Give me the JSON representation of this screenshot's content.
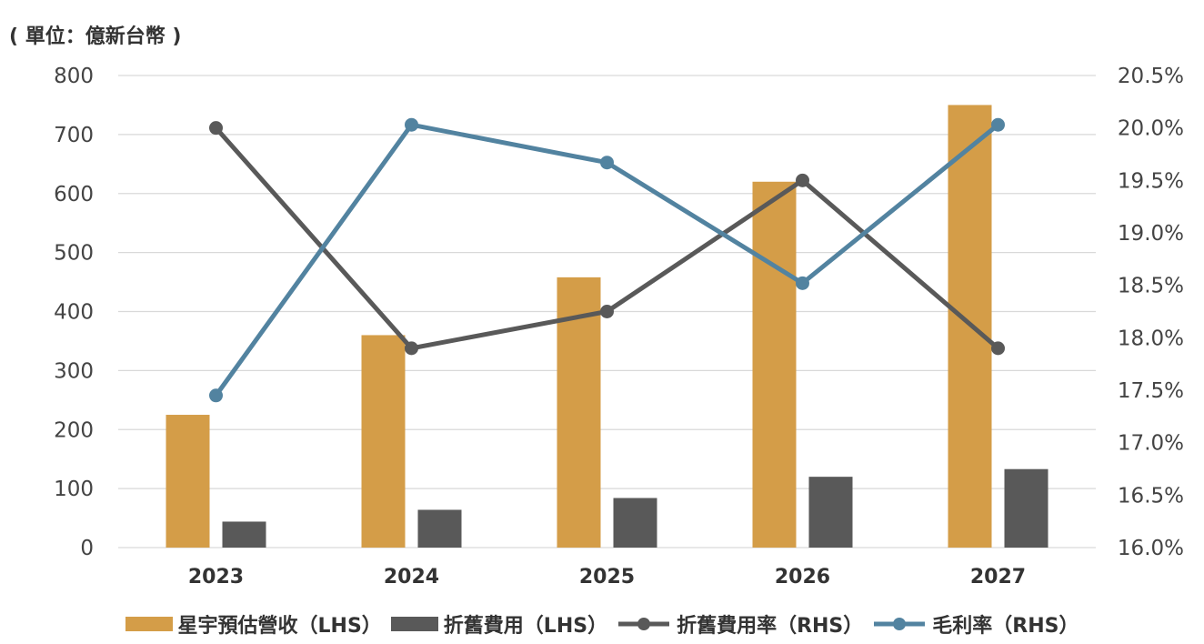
{
  "unit_label": "( 單位：億新台幣 )",
  "colors": {
    "revenue": "#D49D48",
    "depreciation": "#595959",
    "dep_rate": "#595959",
    "gross_margin": "#5283A0",
    "grid": "#D9D9D9"
  },
  "chart_data": {
    "type": "bar",
    "categories": [
      "2023",
      "2024",
      "2025",
      "2026",
      "2027"
    ],
    "y_left": {
      "ylim": [
        0,
        800
      ],
      "ticks": [
        0,
        100,
        200,
        300,
        400,
        500,
        600,
        700,
        800
      ],
      "tick_labels": [
        "0",
        "100",
        "200",
        "300",
        "400",
        "500",
        "600",
        "700",
        "800"
      ]
    },
    "y_right": {
      "ylim": [
        16.0,
        20.5
      ],
      "ticks": [
        16.0,
        16.5,
        17.0,
        17.5,
        18.0,
        18.5,
        19.0,
        19.5,
        20.0,
        20.5
      ],
      "tick_labels": [
        "16.0%",
        "16.5%",
        "17.0%",
        "17.5%",
        "18.0%",
        "18.5%",
        "19.0%",
        "19.5%",
        "20.0%",
        "20.5%"
      ]
    },
    "grid": true,
    "legend_position": "bottom",
    "series": [
      {
        "name": "星宇預估營收（LHS）",
        "type": "bar",
        "axis": "left",
        "values": [
          225,
          360,
          458,
          620,
          750
        ]
      },
      {
        "name": "折舊費用（LHS）",
        "type": "bar",
        "axis": "left",
        "values": [
          44,
          64,
          84,
          120,
          133
        ]
      },
      {
        "name": "折舊費用率（RHS）",
        "type": "line",
        "axis": "right",
        "values": [
          20.0,
          17.9,
          18.25,
          19.5,
          17.9
        ]
      },
      {
        "name": "毛利率（RHS）",
        "type": "line",
        "axis": "right",
        "values": [
          17.45,
          20.03,
          19.67,
          18.52,
          20.03
        ]
      }
    ]
  }
}
